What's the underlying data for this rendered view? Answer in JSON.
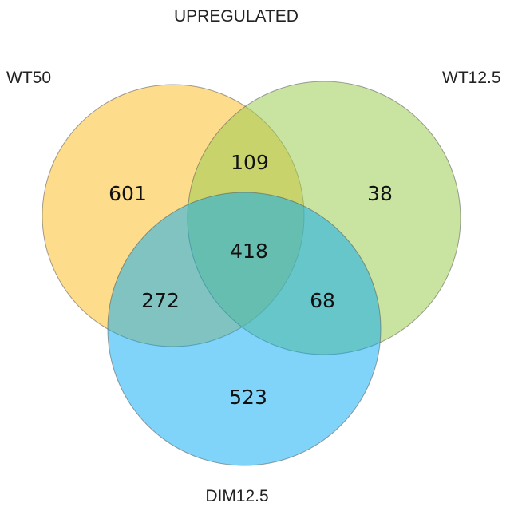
{
  "title": "UPREGULATED",
  "sets": [
    {
      "key": "wt50",
      "label": "WT50",
      "color": "#fbc02d"
    },
    {
      "key": "wt125",
      "label": "WT12.5",
      "color": "#9ccc52"
    },
    {
      "key": "dim125",
      "label": "DIM12.5",
      "color": "#03a9f4"
    }
  ],
  "regions": {
    "wt50_only": "601",
    "wt125_only": "38",
    "dim125_only": "523",
    "wt50_wt125": "109",
    "wt50_dim125": "272",
    "wt125_dim125": "68",
    "all_three": "418"
  }
}
